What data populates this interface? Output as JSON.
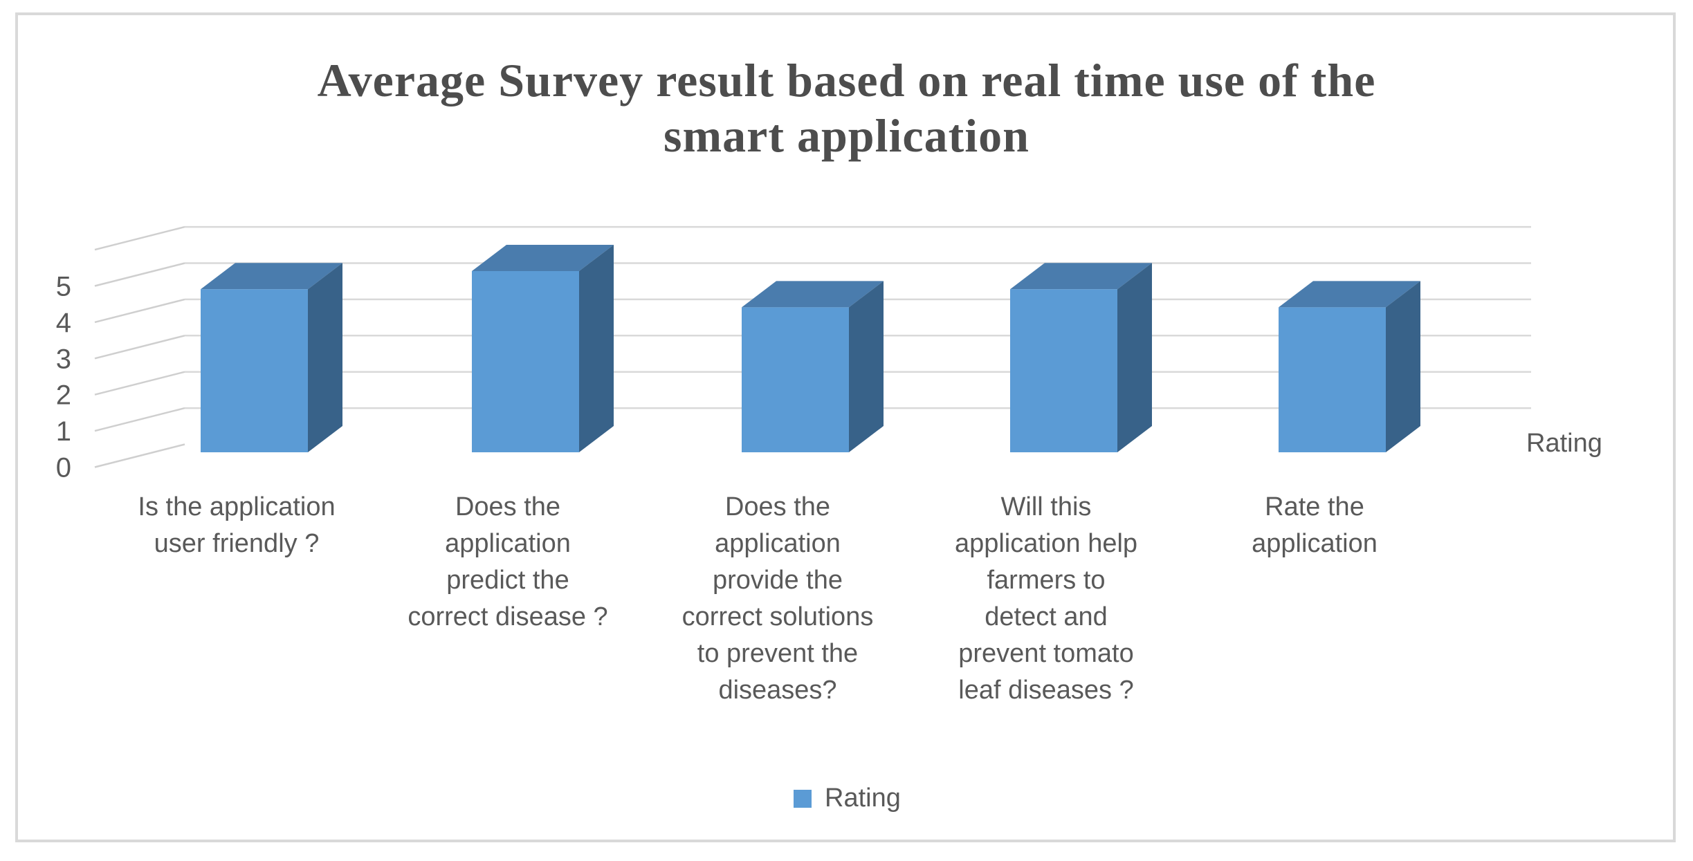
{
  "title": {
    "line1": "Average Survey result based on real time use of the",
    "line2": "smart application"
  },
  "chart_data": {
    "type": "bar",
    "projection": "3d",
    "title": "Average Survey result based on real time use of the smart application",
    "categories": [
      "Is the application user friendly ?",
      "Does the application predict the correct disease ?",
      "Does the application provide the correct solutions to prevent the diseases?",
      "Will this application help farmers to detect and prevent tomato leaf diseases ?",
      "Rate the application"
    ],
    "category_lines": [
      [
        "Is the application",
        "user friendly ?"
      ],
      [
        "Does the",
        "application",
        "predict the",
        "correct disease ?"
      ],
      [
        "Does the",
        "application",
        "provide the",
        "correct solutions",
        "to prevent the",
        "diseases?"
      ],
      [
        "Will this",
        "application help",
        "farmers to",
        "detect and",
        "prevent tomato",
        "leaf diseases ?"
      ],
      [
        "Rate the",
        "application"
      ]
    ],
    "series": [
      {
        "name": "Rating",
        "values": [
          4.5,
          5,
          4,
          4.5,
          4
        ]
      }
    ],
    "ylim": [
      0,
      5
    ],
    "yticks": [
      0,
      1,
      2,
      3,
      4,
      5
    ],
    "grid": true,
    "legend": {
      "label": "Rating",
      "position": "bottom"
    },
    "axis_title_right": "Rating",
    "colors": {
      "bar_front": "#5B9BD5",
      "bar_top": "#4A7CAD",
      "bar_side": "#386289",
      "gridline": "#D9D9D9",
      "diagonal": "#CFCFCF",
      "axis_text": "#595959",
      "title_text": "#4D4D4D",
      "chart_border": "#D9D9D9",
      "background": "#FFFFFF"
    }
  }
}
